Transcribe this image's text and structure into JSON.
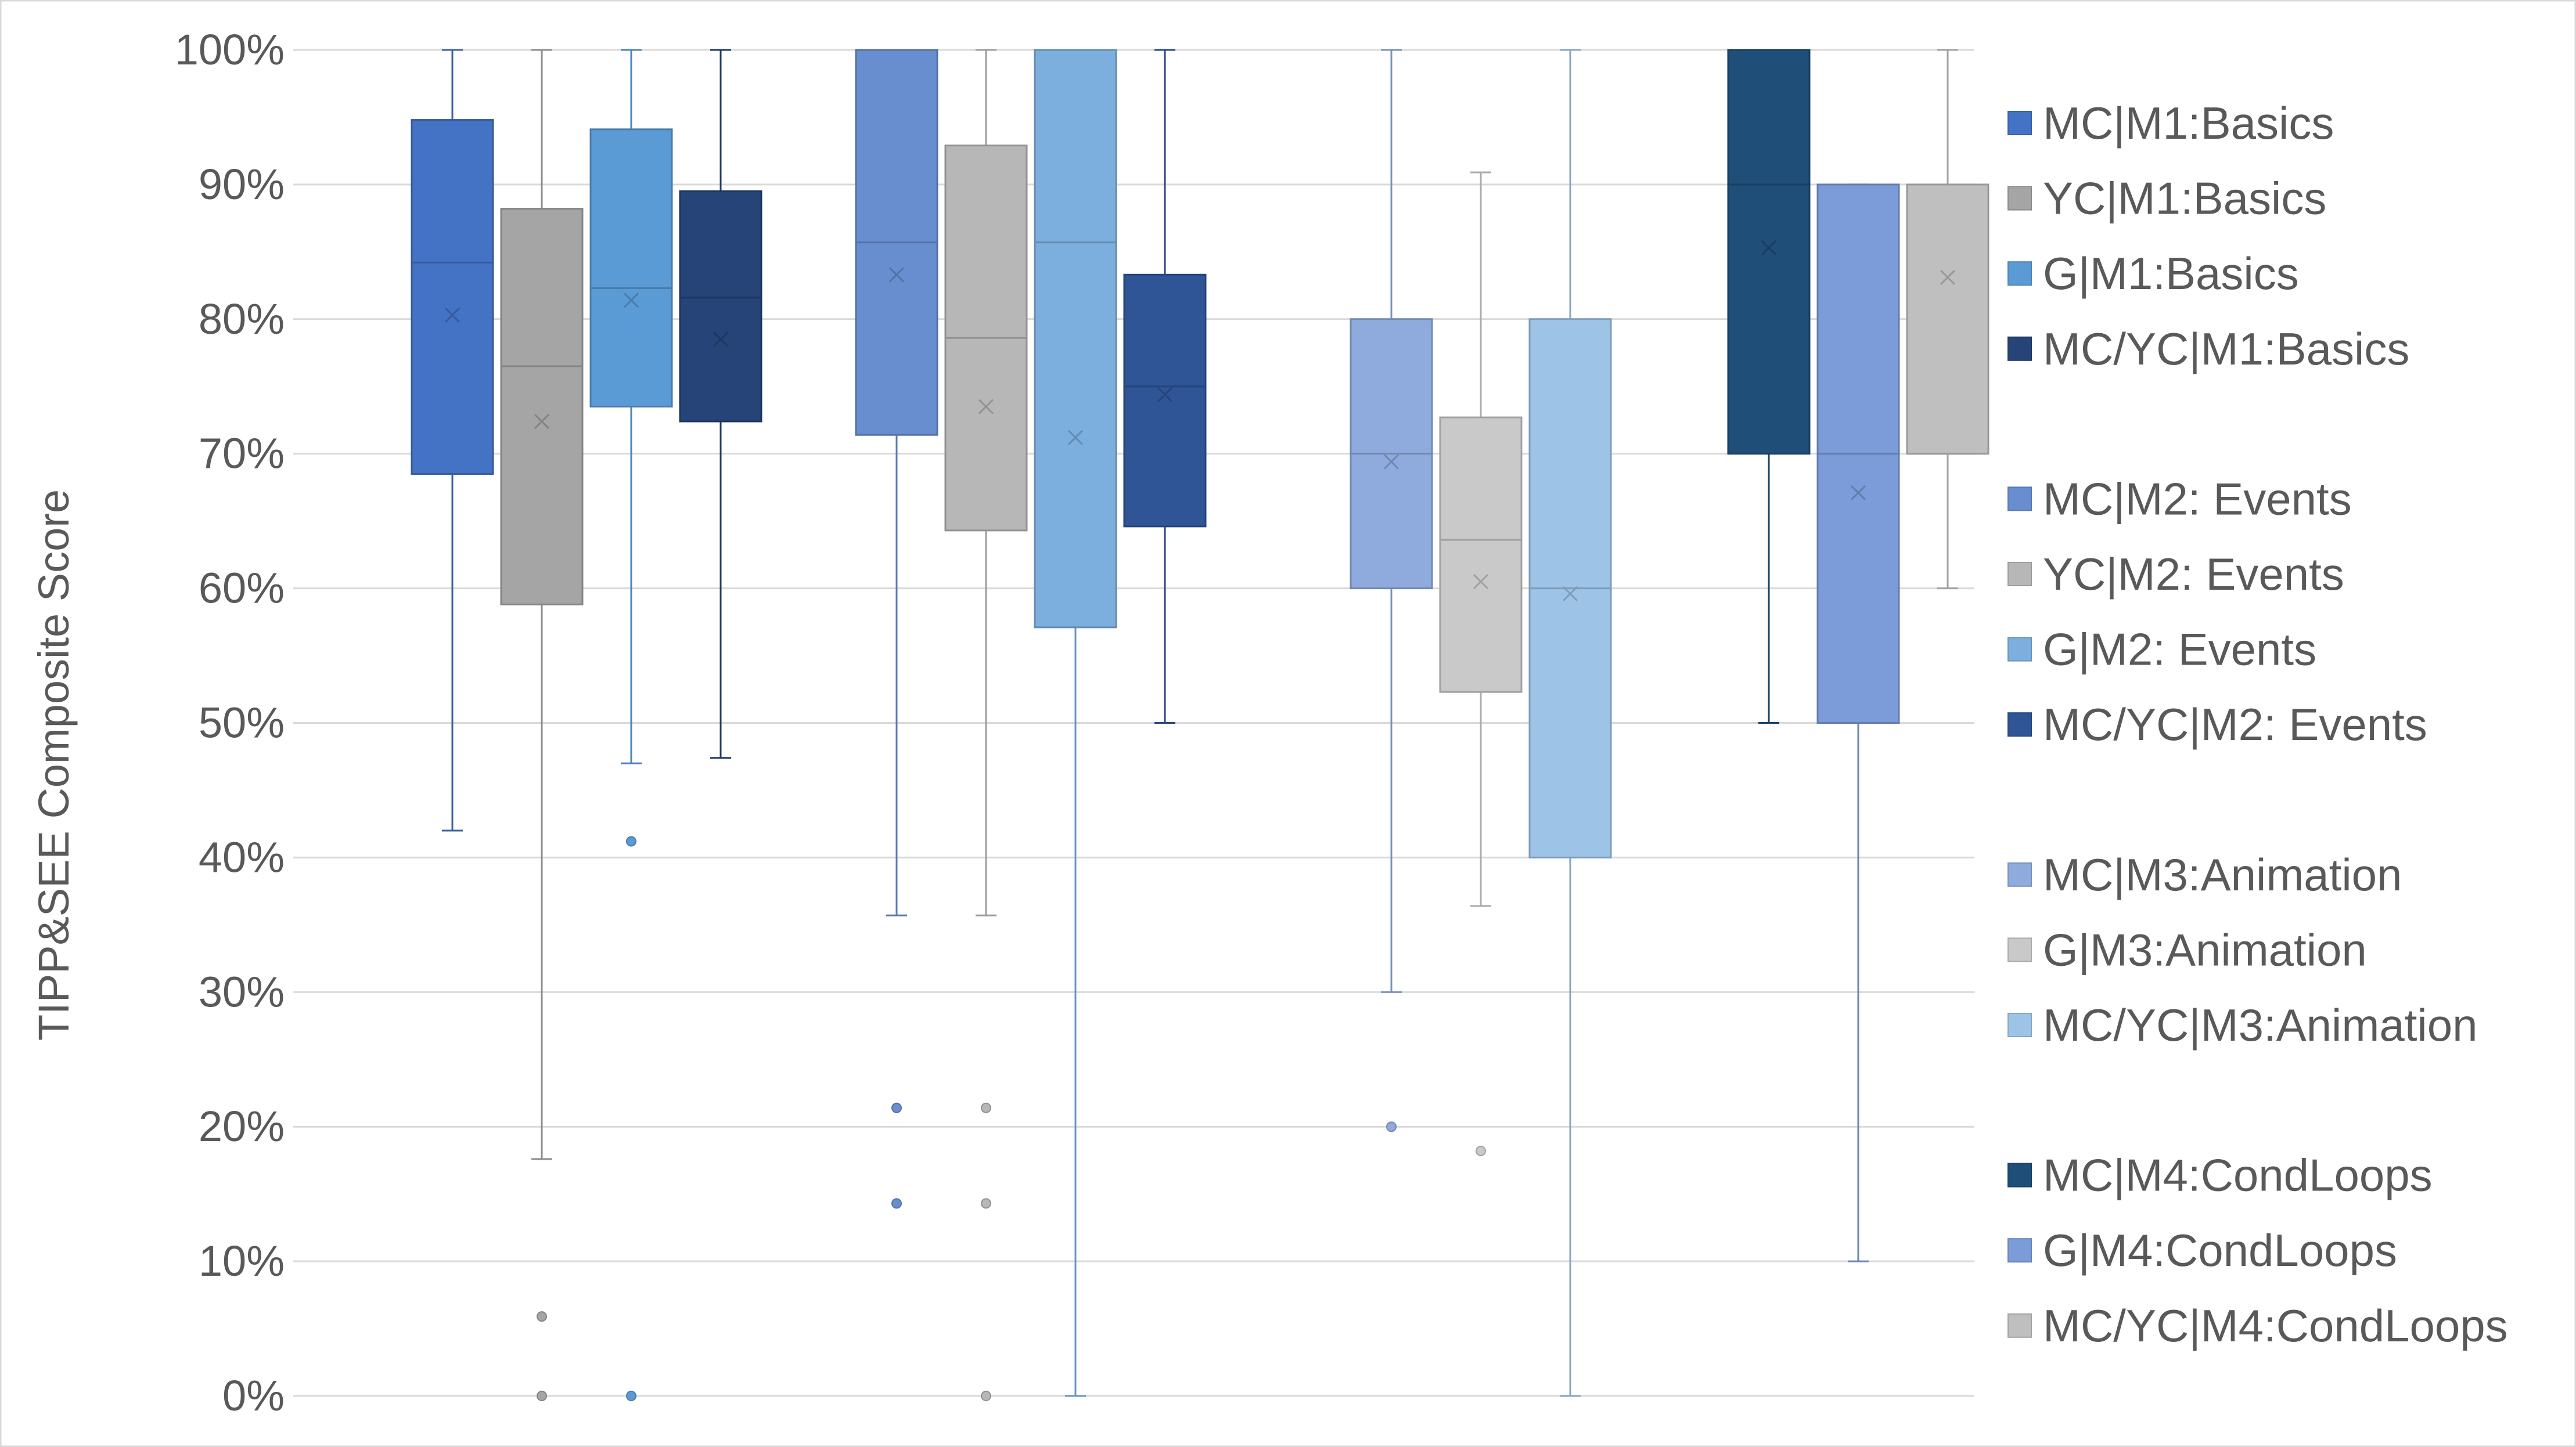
{
  "chart_data": {
    "type": "box",
    "ylabel": "TIPP&SEE Composite Score",
    "ylim": [
      0,
      100
    ],
    "yticks": [
      "0%",
      "10%",
      "20%",
      "30%",
      "40%",
      "50%",
      "60%",
      "70%",
      "80%",
      "90%",
      "100%"
    ],
    "grid": true,
    "legend_position": "right",
    "series": [
      {
        "name": "MC|M1:Basics",
        "group": 1,
        "color": "#4472C4",
        "min": 42,
        "q1": 68.5,
        "median": 84.2,
        "q3": 94.8,
        "max": 100,
        "mean": 80.3,
        "outliers": []
      },
      {
        "name": "YC|M1:Basics",
        "group": 1,
        "color": "#A5A5A5",
        "min": 17.6,
        "q1": 58.8,
        "median": 76.5,
        "q3": 88.2,
        "max": 100,
        "mean": 72.4,
        "outliers": [
          5.9,
          0
        ]
      },
      {
        "name": "G|M1:Basics",
        "group": 1,
        "color": "#5B9BD5",
        "min": 47,
        "q1": 73.5,
        "median": 82.3,
        "q3": 94.1,
        "max": 100,
        "mean": 81.4,
        "outliers": [
          41.2,
          0
        ]
      },
      {
        "name": "MC/YC|M1:Basics",
        "group": 1,
        "color": "#264478",
        "min": 47.4,
        "q1": 72.4,
        "median": 81.6,
        "q3": 89.5,
        "max": 100,
        "mean": 78.5,
        "outliers": []
      },
      {
        "name": "MC|M2: Events",
        "group": 2,
        "color": "#698ED0",
        "min": 35.7,
        "q1": 71.4,
        "median": 85.7,
        "q3": 100,
        "max": 100,
        "mean": 83.3,
        "outliers": [
          21.4,
          14.3
        ]
      },
      {
        "name": "YC|M2: Events",
        "group": 2,
        "color": "#B7B7B7",
        "min": 35.7,
        "q1": 64.3,
        "median": 78.6,
        "q3": 92.9,
        "max": 100,
        "mean": 73.5,
        "outliers": [
          21.4,
          14.3,
          0
        ]
      },
      {
        "name": "G|M2: Events",
        "group": 2,
        "color": "#7CAFDD",
        "min": 0,
        "q1": 57.1,
        "median": 85.7,
        "q3": 100,
        "max": 100,
        "mean": 71.2,
        "outliers": []
      },
      {
        "name": "MC/YC|M2: Events",
        "group": 2,
        "color": "#2F5597",
        "min": 50,
        "q1": 64.6,
        "median": 75,
        "q3": 83.3,
        "max": 100,
        "mean": 74.4,
        "outliers": []
      },
      {
        "name": "MC|M3:Animation",
        "group": 3,
        "color": "#8FAADC",
        "min": 30,
        "q1": 60,
        "median": 70,
        "q3": 80,
        "max": 100,
        "mean": 69.4,
        "outliers": [
          20
        ]
      },
      {
        "name": "G|M3:Animation",
        "group": 3,
        "color": "#C9C9C9",
        "min": 36.4,
        "q1": 52.3,
        "median": 63.6,
        "q3": 72.7,
        "max": 90.9,
        "mean": 60.5,
        "outliers": [
          18.2
        ]
      },
      {
        "name": "MC/YC|M3:Animation",
        "group": 3,
        "color": "#9DC3E6",
        "min": 0,
        "q1": 40,
        "median": 60,
        "q3": 80,
        "max": 100,
        "mean": 59.6,
        "outliers": []
      },
      {
        "name": "MC|M4:CondLoops",
        "group": 4,
        "color": "#1F4E79",
        "min": 50,
        "q1": 70,
        "median": 90,
        "q3": 100,
        "max": 100,
        "mean": 85.3,
        "outliers": []
      },
      {
        "name": "G|M4:CondLoops",
        "group": 4,
        "color": "#7B9CD8",
        "min": 10,
        "q1": 50,
        "median": 70,
        "q3": 90,
        "max": 90,
        "mean": 67.1,
        "outliers": []
      },
      {
        "name": "MC/YC|M4:CondLoops",
        "group": 4,
        "color": "#BFBFBF",
        "min": 60,
        "q1": 70,
        "median": 70,
        "q3": 90,
        "max": 100,
        "mean": 83.1,
        "outliers": []
      }
    ]
  }
}
